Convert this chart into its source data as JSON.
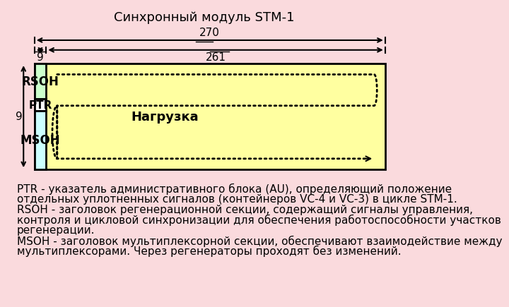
{
  "title": "Синхронный модуль STM-1",
  "title_fontsize": 13,
  "background_color": "#FADADD",
  "col1_rsoh_color": "#ccffcc",
  "col1_msoh_color": "#ccffff",
  "col2_color": "#ffffa0",
  "ptr_color": "#ffffff",
  "rsoh_label": "RSOH",
  "ptr_label": "PTR",
  "msoh_label": "MSOH",
  "load_label": "Нагрузка",
  "dim_270": "270",
  "dim_9_top": "9",
  "dim_9_left": "9",
  "dim_261": "261",
  "description_lines": [
    "PTR - указатель административного блока (AU), определяющий положение",
    "отдельных уплотненных сигналов (контейнеров VC-4 и VC-3) в цикле STM-1.",
    "RSOH - заголовок регенерационной секции, содержащий сигналы управления,",
    "контроля и цикловой синхронизации для обеспечения работоспособности участков",
    "регенерации.",
    "MSOH - заголовок мультиплексорной секции, обеспечивают взаимодействие между",
    "мультиплексорами. Через регенераторы проходят без изменений."
  ],
  "desc_fontsize": 11
}
